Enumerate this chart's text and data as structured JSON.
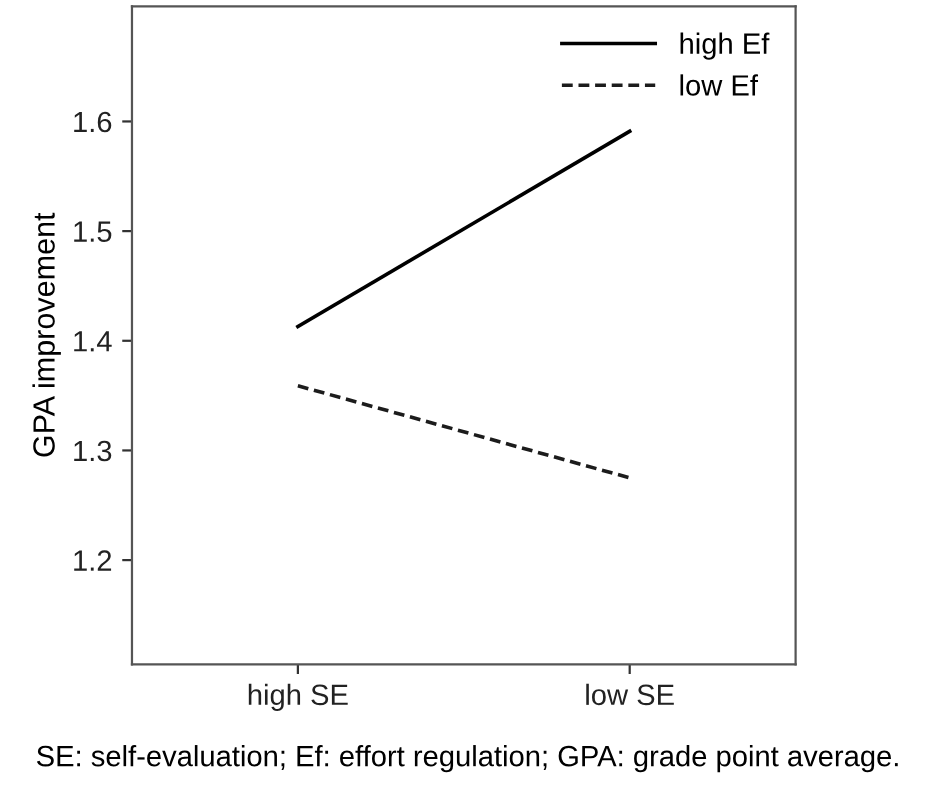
{
  "chart_data": {
    "type": "line",
    "ylabel": "GPA improvement",
    "categories": [
      "high SE",
      "low SE"
    ],
    "series": [
      {
        "name": "high Ef",
        "color": "#000000",
        "values": [
          1.413,
          1.591
        ],
        "line_style": "solid"
      },
      {
        "name": "low Ef",
        "color": "#1c1c1c",
        "values": [
          1.359,
          1.275
        ],
        "line_style": "dashed"
      }
    ],
    "ylim": [
      1.105,
      1.705
    ],
    "yticks": [
      1.2,
      1.3,
      1.4,
      1.5,
      1.6
    ],
    "grid": false,
    "legend": "top right",
    "marker": "none",
    "annotations": [
      "SE: self-evaluation; Ef: effort regulation; GPA: grade point average."
    ]
  }
}
